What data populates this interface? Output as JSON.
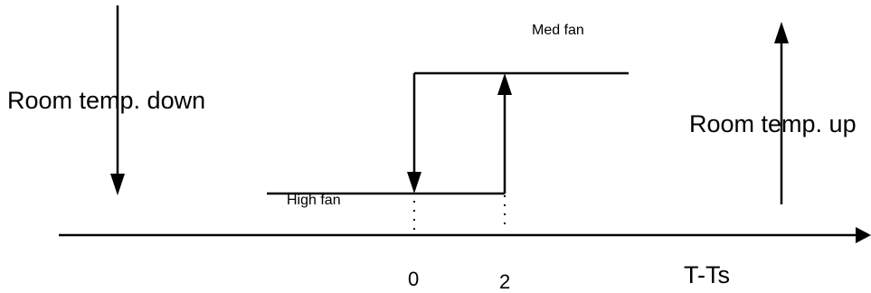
{
  "diagram": {
    "labels": {
      "room_temp_down": "Room temp. down",
      "room_temp_up": "Room temp. up",
      "med_fan": "Med fan",
      "high_fan": "High fan",
      "tick_zero": "0",
      "tick_two": "2",
      "axis_title": "T-Ts"
    },
    "line_color": "#000000",
    "background": "#ffffff"
  }
}
